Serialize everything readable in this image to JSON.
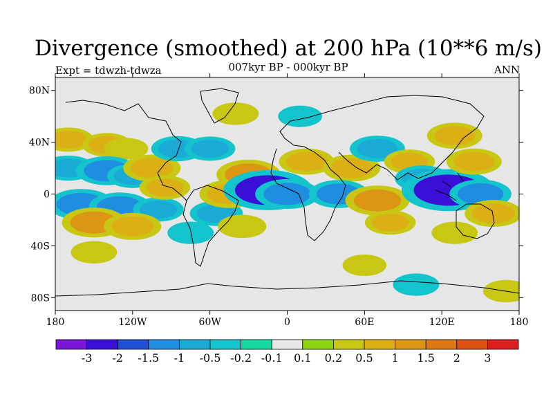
{
  "header": {
    "title": "Divergence (smoothed) at 200 hPa (10**6 m/s)",
    "subtitle": "007kyr BP - 000kyr BP",
    "left_label": "Expt = tdwzh-tdwza",
    "right_label": "ANN"
  },
  "chart_data": {
    "type": "heatmap",
    "title": "Divergence (smoothed) at 200 hPa (10**6 m/s)",
    "subtitle": "007kyr BP - 000kyr BP",
    "xlabel": "",
    "ylabel": "",
    "xlim": [
      -180,
      180
    ],
    "ylim": [
      -90,
      90
    ],
    "x_ticks": [
      {
        "value": -180,
        "label": "180"
      },
      {
        "value": -120,
        "label": "120W"
      },
      {
        "value": -60,
        "label": "60W"
      },
      {
        "value": 0,
        "label": "0"
      },
      {
        "value": 60,
        "label": "60E"
      },
      {
        "value": 120,
        "label": "120E"
      },
      {
        "value": 180,
        "label": "180"
      }
    ],
    "y_ticks": [
      {
        "value": 80,
        "label": "80N"
      },
      {
        "value": 40,
        "label": "40N"
      },
      {
        "value": 0,
        "label": "0"
      },
      {
        "value": -40,
        "label": "40S"
      },
      {
        "value": -80,
        "label": "80S"
      }
    ],
    "colorbar": {
      "levels": [
        -3,
        -2,
        -1.5,
        -1,
        -0.5,
        -0.2,
        -0.1,
        0.1,
        0.2,
        0.5,
        1,
        1.5,
        2,
        3
      ],
      "labels": [
        "-3",
        "-2",
        "-1.5",
        "-1",
        "-0.5",
        "-0.2",
        "-0.1",
        "0.1",
        "0.2",
        "0.5",
        "1",
        "1.5",
        "2",
        "3"
      ],
      "colors": [
        "#7a16d8",
        "#3a10d8",
        "#1f4fd6",
        "#1f8ee0",
        "#1aaad6",
        "#14c4cc",
        "#14d8a0",
        "#e6e6e6",
        "#8cd414",
        "#c8c814",
        "#dcb014",
        "#dc9614",
        "#dc7814",
        "#dc5014",
        "#dc1e1e"
      ]
    },
    "fields": [
      {
        "lon": -170,
        "lat": 42,
        "value": 0.6
      },
      {
        "lon": -140,
        "lat": 38,
        "value": 0.55
      },
      {
        "lon": -125,
        "lat": 35,
        "value": 0.3
      },
      {
        "lon": -170,
        "lat": 20,
        "value": -0.7
      },
      {
        "lon": -140,
        "lat": 18,
        "value": -1.1
      },
      {
        "lon": -120,
        "lat": 14,
        "value": -0.6
      },
      {
        "lon": -160,
        "lat": -8,
        "value": -1.3
      },
      {
        "lon": -130,
        "lat": -10,
        "value": -1.1
      },
      {
        "lon": -100,
        "lat": -12,
        "value": -0.6
      },
      {
        "lon": -150,
        "lat": -22,
        "value": 1.2
      },
      {
        "lon": -120,
        "lat": -25,
        "value": 0.9
      },
      {
        "lon": -150,
        "lat": -45,
        "value": 0.4
      },
      {
        "lon": -105,
        "lat": 20,
        "value": 0.9
      },
      {
        "lon": -95,
        "lat": 5,
        "value": 0.6
      },
      {
        "lon": -85,
        "lat": 35,
        "value": -0.7
      },
      {
        "lon": -60,
        "lat": 35,
        "value": -0.6
      },
      {
        "lon": -75,
        "lat": -30,
        "value": -0.4
      },
      {
        "lon": -55,
        "lat": -15,
        "value": -0.7
      },
      {
        "lon": -45,
        "lat": 0,
        "value": 1.0
      },
      {
        "lon": -30,
        "lat": 15,
        "value": 1.2
      },
      {
        "lon": -15,
        "lat": 3,
        "value": -2.3
      },
      {
        "lon": 0,
        "lat": 0,
        "value": -1.2
      },
      {
        "lon": -35,
        "lat": -25,
        "value": 0.5
      },
      {
        "lon": 15,
        "lat": 25,
        "value": 0.8
      },
      {
        "lon": 50,
        "lat": 20,
        "value": 0.9
      },
      {
        "lon": 40,
        "lat": 0,
        "value": -1.0
      },
      {
        "lon": 70,
        "lat": -5,
        "value": 1.2
      },
      {
        "lon": 80,
        "lat": -22,
        "value": 0.6
      },
      {
        "lon": 70,
        "lat": 35,
        "value": -0.8
      },
      {
        "lon": 95,
        "lat": 25,
        "value": 0.6
      },
      {
        "lon": 105,
        "lat": 12,
        "value": -0.8
      },
      {
        "lon": 125,
        "lat": 3,
        "value": -2.6
      },
      {
        "lon": 150,
        "lat": 0,
        "value": -1.1
      },
      {
        "lon": 145,
        "lat": 25,
        "value": 0.8
      },
      {
        "lon": 130,
        "lat": 45,
        "value": 0.8
      },
      {
        "lon": 160,
        "lat": -15,
        "value": 0.9
      },
      {
        "lon": 130,
        "lat": -30,
        "value": 0.4
      },
      {
        "lon": 60,
        "lat": -55,
        "value": 0.3
      },
      {
        "lon": 100,
        "lat": -70,
        "value": -0.4
      },
      {
        "lon": 170,
        "lat": -75,
        "value": 0.4
      },
      {
        "lon": -40,
        "lat": 62,
        "value": 0.4
      },
      {
        "lon": 10,
        "lat": 60,
        "value": -0.3
      }
    ]
  }
}
